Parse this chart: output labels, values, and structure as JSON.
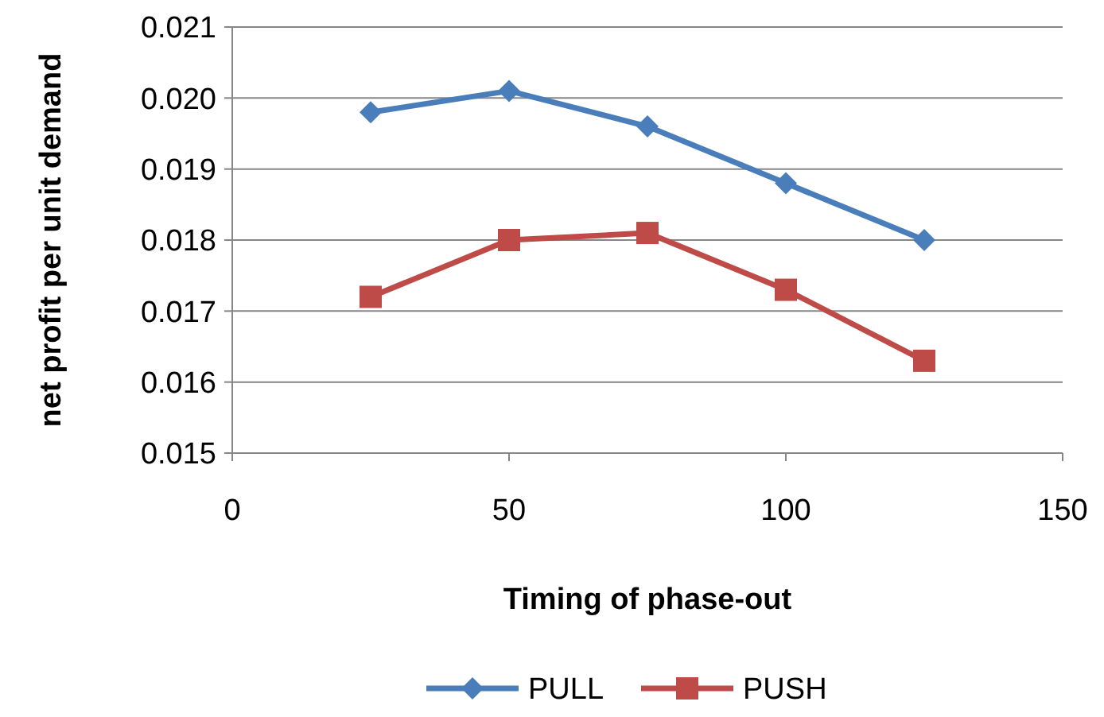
{
  "chart_data": {
    "type": "line",
    "xlabel": "Timing of phase-out",
    "ylabel": "net profit per unit demand",
    "x": [
      25,
      50,
      75,
      100,
      125
    ],
    "series": [
      {
        "name": "PULL",
        "color": "#4a7ebb",
        "marker": "diamond",
        "values": [
          0.0198,
          0.0201,
          0.0196,
          0.0188,
          0.018
        ]
      },
      {
        "name": "PUSH",
        "color": "#be4b48",
        "marker": "square",
        "values": [
          0.0172,
          0.018,
          0.0181,
          0.0173,
          0.0163
        ]
      }
    ],
    "xlim": [
      0,
      150
    ],
    "xticks": [
      0,
      50,
      100,
      150
    ],
    "ylim": [
      0.015,
      0.021
    ],
    "yticks": [
      {
        "value": 0.015,
        "label": "0.015"
      },
      {
        "value": 0.016,
        "label": "0.016"
      },
      {
        "value": 0.017,
        "label": "0.017"
      },
      {
        "value": 0.018,
        "label": "0.018"
      },
      {
        "value": 0.019,
        "label": "0.019"
      },
      {
        "value": 0.02,
        "label": "0.020"
      },
      {
        "value": 0.021,
        "label": "0.021"
      }
    ],
    "grid": "y",
    "legend": "bottom",
    "line_style": "solid"
  }
}
